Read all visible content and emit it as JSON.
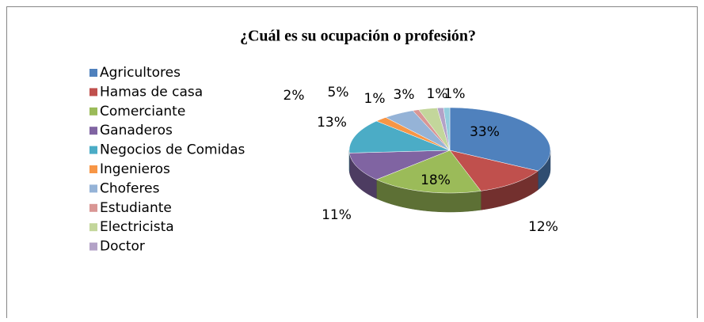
{
  "chart_data": {
    "type": "pie3d",
    "title": "¿Cuál es su ocupación o profesión?",
    "categories": [
      "Agricultores",
      "Hamas de casa",
      "Comerciante",
      "Ganaderos",
      "Negocios de Comidas",
      "Ingenieros",
      "Choferes",
      "Estudiante",
      "Electricista",
      "Doctor",
      null
    ],
    "values": [
      33,
      12,
      18,
      11,
      13,
      2,
      5,
      1,
      3,
      1,
      1
    ],
    "value_labels": [
      "33%",
      "12%",
      "18%",
      "11%",
      "13%",
      "2%",
      "5%",
      "1%",
      "3%",
      "1%",
      "1%"
    ],
    "colors": [
      "#4f81bd",
      "#c0504d",
      "#9bbb59",
      "#8064a2",
      "#4bacc6",
      "#f79646",
      "#95b3d7",
      "#d99694",
      "#c3d69b",
      "#b3a2c7",
      "#93cddd"
    ],
    "legend": "left"
  }
}
